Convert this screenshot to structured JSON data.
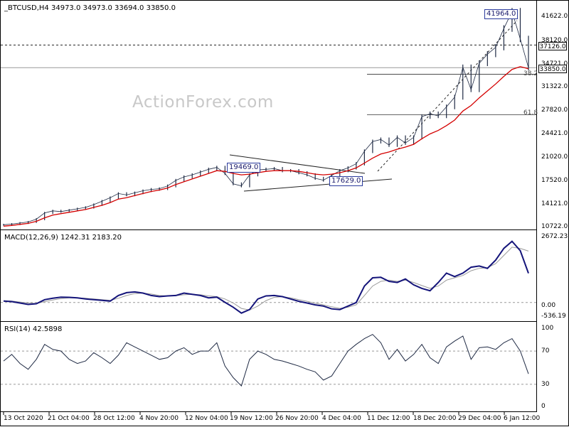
{
  "header": {
    "symbol": "_BTCUSD,H4",
    "ohlc": "34973.0 34973.0 33694.0 33850.0",
    "macd_label": "MACD(12,26,9) 1242.31 2183.20",
    "rsi_label": "RSI(14) 42.5898"
  },
  "watermark": "ActionForex.com",
  "colors": {
    "price": "#1f2a44",
    "ema": "#d40000",
    "macd": "#14147a",
    "signal": "#9a9a9a",
    "line": "#1f2a44",
    "grid": "#888888"
  },
  "chart_data": [
    {
      "type": "line",
      "title": "_BTCUSD,H4",
      "ylim": [
        10722,
        43000
      ],
      "y_ticks": [
        "41622.0",
        "38120.0",
        "34721.0",
        "31322.0",
        "27820.0",
        "24421.0",
        "21020.0",
        "17520.0",
        "14121.0",
        "10722.0"
      ],
      "x_ticks": [
        "13 Oct 2020",
        "21 Oct 04:00",
        "28 Oct 12:00",
        "4 Nov 20:00",
        "12 Nov 04:00",
        "19 Nov 12:00",
        "26 Nov 20:00",
        "4 Dec 04:00",
        "11 Dec 12:00",
        "18 Dec 20:00",
        "29 Dec 04:00",
        "6 Jan 12:00"
      ],
      "current_price": "33850.0",
      "resistance_level": "37126.0",
      "annotations": [
        "41964.0",
        "19469.0",
        "17629.0",
        "38.2",
        "61.8"
      ],
      "series": [
        {
          "values": [
            11200,
            11300,
            11450,
            11600,
            12000,
            12900,
            13200,
            13100,
            13300,
            13500,
            13700,
            14100,
            14600,
            15100,
            15700,
            15500,
            15800,
            16100,
            16300,
            16400,
            16800,
            17600,
            18100,
            18400,
            18800,
            19200,
            19469,
            18600,
            17100,
            16800,
            18400,
            19100,
            19200,
            19300,
            19000,
            19000,
            18700,
            18400,
            17900,
            17629,
            18300,
            19000,
            19400,
            20000,
            21800,
            23200,
            23500,
            22700,
            23800,
            23000,
            23800,
            26800,
            27200,
            26900,
            28200,
            29600,
            33900,
            30700,
            34500,
            35800,
            36800,
            39500,
            41964,
            38000,
            33850
          ]
        },
        {
          "values": [
            11000,
            11100,
            11250,
            11400,
            11700,
            12200,
            12600,
            12800,
            13000,
            13200,
            13400,
            13700,
            14000,
            14400,
            14900,
            15100,
            15400,
            15700,
            16000,
            16200,
            16500,
            17000,
            17400,
            17800,
            18200,
            18600,
            19000,
            18900,
            18600,
            18400,
            18500,
            18700,
            18900,
            19000,
            19000,
            19000,
            18900,
            18700,
            18500,
            18400,
            18500,
            18700,
            19000,
            19400,
            20100,
            20800,
            21400,
            21700,
            22100,
            22400,
            22800,
            23600,
            24300,
            24800,
            25500,
            26300,
            27600,
            28400,
            29500,
            30500,
            31500,
            32600,
            33600,
            34000,
            33700
          ]
        }
      ]
    },
    {
      "type": "line",
      "title": "MACD(12,26,9)",
      "ylim": [
        -700,
        2800
      ],
      "y_ticks": [
        "2672.23",
        "0.00",
        "-536.19"
      ],
      "series": [
        {
          "values": [
            60,
            40,
            -20,
            -80,
            -50,
            120,
            180,
            230,
            220,
            200,
            150,
            120,
            90,
            60,
            300,
            420,
            450,
            400,
            300,
            250,
            280,
            300,
            400,
            350,
            300,
            200,
            230,
            10,
            -200,
            -450,
            -300,
            150,
            280,
            300,
            250,
            150,
            50,
            -20,
            -100,
            -150,
            -270,
            -300,
            -150,
            0,
            700,
            1050,
            1070,
            900,
            850,
            1000,
            750,
            600,
            500,
            850,
            1250,
            1100,
            1250,
            1500,
            1550,
            1450,
            1800,
            2300,
            2600,
            2200,
            1242
          ]
        },
        {
          "values": [
            80,
            60,
            20,
            -20,
            -40,
            40,
            110,
            170,
            200,
            200,
            180,
            150,
            120,
            90,
            180,
            300,
            380,
            400,
            360,
            300,
            280,
            290,
            330,
            350,
            330,
            280,
            250,
            150,
            -20,
            -250,
            -320,
            -150,
            80,
            220,
            250,
            200,
            120,
            50,
            -30,
            -100,
            -180,
            -250,
            -200,
            -100,
            300,
            700,
            900,
            950,
            900,
            950,
            850,
            720,
            600,
            700,
            950,
            1050,
            1150,
            1350,
            1450,
            1480,
            1650,
            2000,
            2350,
            2300,
            2183
          ]
        }
      ]
    },
    {
      "type": "line",
      "title": "RSI(14)",
      "ylim": [
        0,
        100
      ],
      "y_ticks": [
        "100",
        "70",
        "30",
        "0"
      ],
      "series": [
        {
          "values": [
            58,
            66,
            55,
            48,
            60,
            78,
            72,
            70,
            60,
            55,
            58,
            68,
            62,
            55,
            65,
            80,
            75,
            70,
            65,
            60,
            62,
            70,
            74,
            66,
            70,
            70,
            80,
            52,
            38,
            28,
            60,
            70,
            66,
            60,
            58,
            55,
            52,
            48,
            45,
            35,
            40,
            55,
            70,
            78,
            85,
            90,
            80,
            60,
            72,
            58,
            66,
            78,
            62,
            55,
            75,
            82,
            88,
            60,
            74,
            75,
            72,
            80,
            85,
            70,
            42.5898
          ]
        }
      ]
    }
  ]
}
